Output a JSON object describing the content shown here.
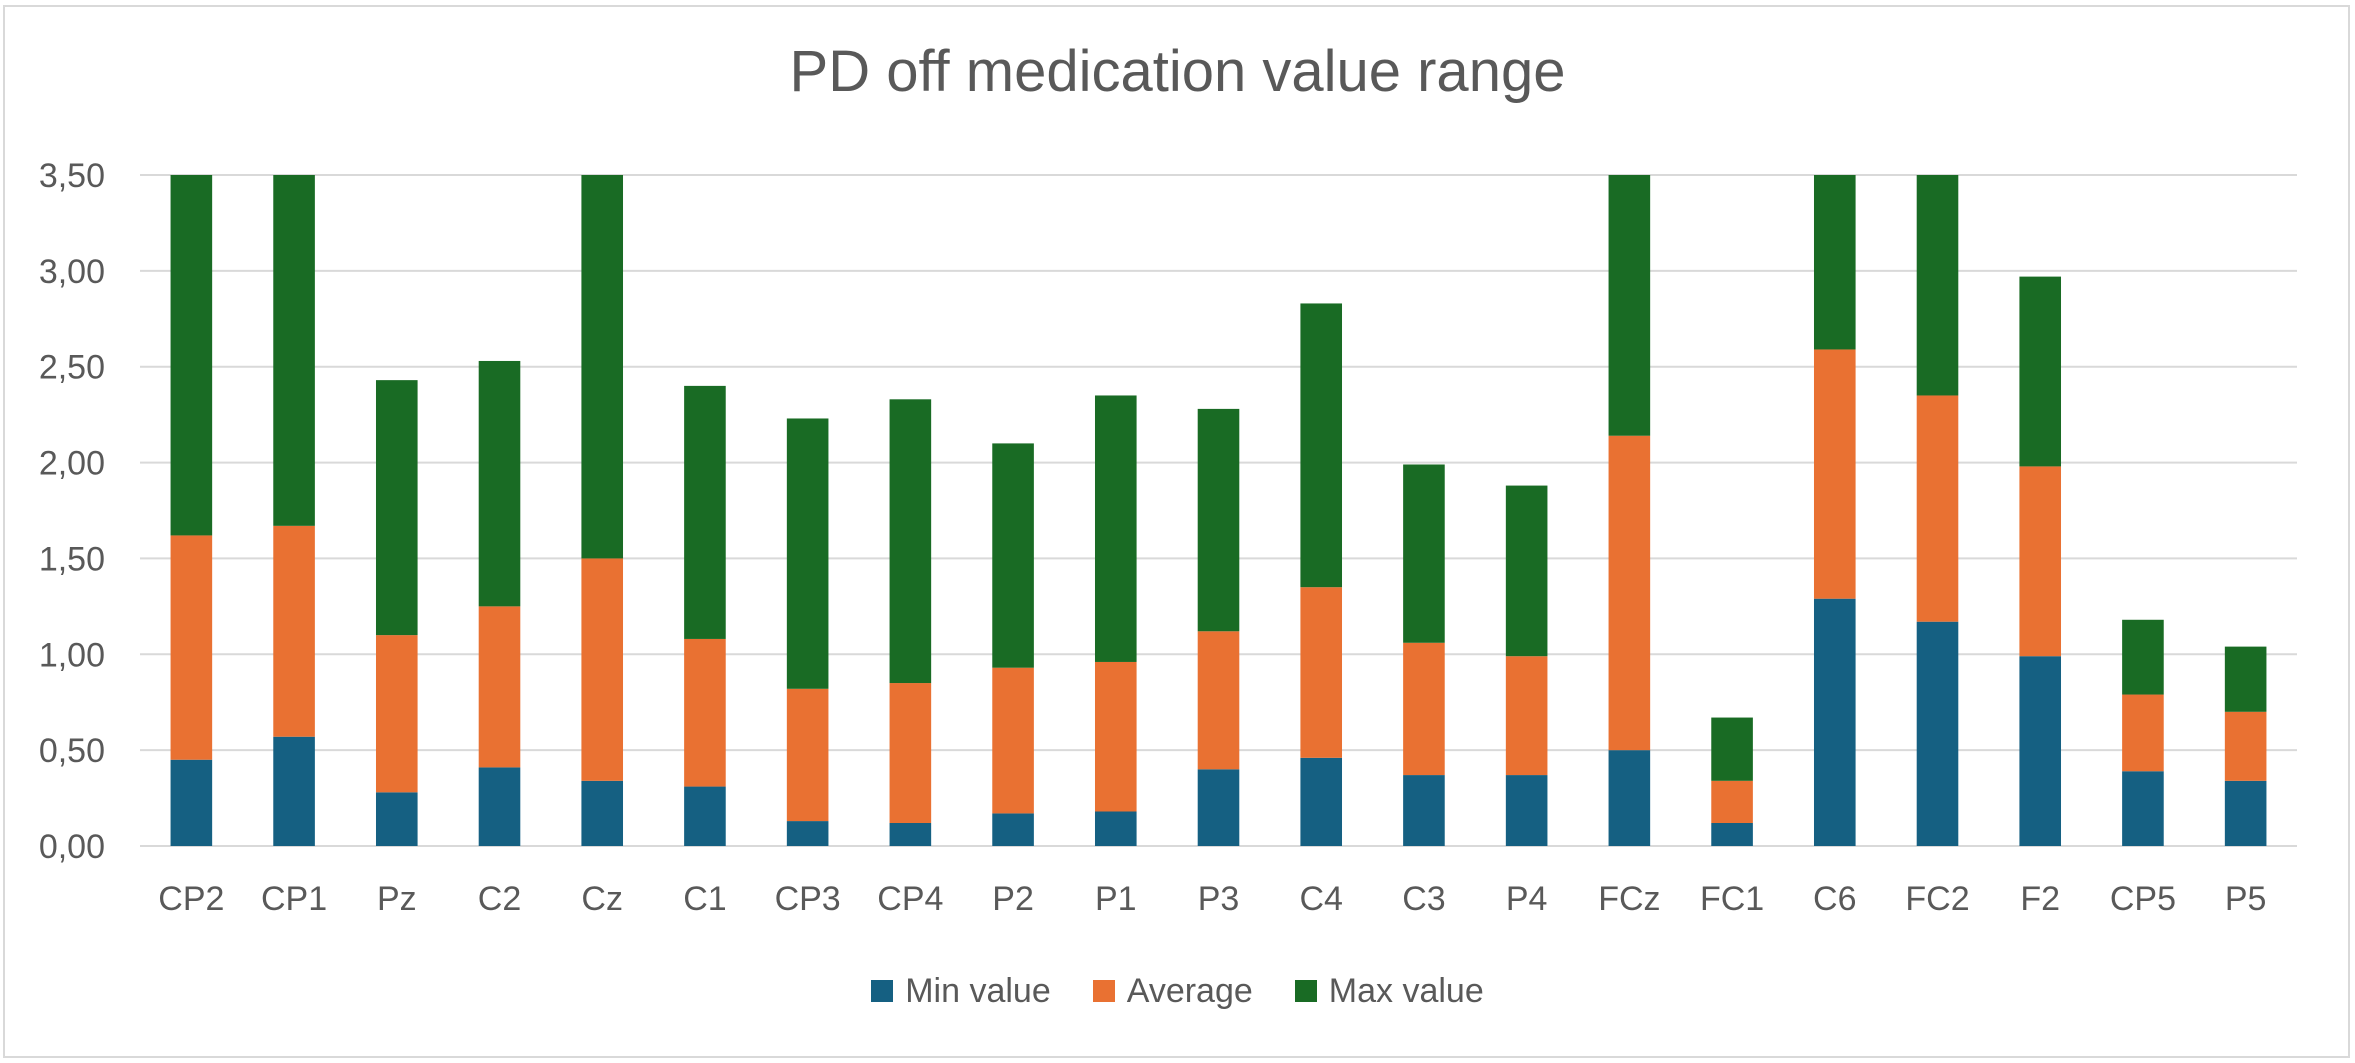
{
  "chart_data": {
    "type": "bar",
    "stacked": true,
    "title": "PD off medication value range",
    "xlabel": "",
    "ylabel": "",
    "ylim": [
      0,
      3.5
    ],
    "yticks": [
      "0,00",
      "0,50",
      "1,00",
      "1,50",
      "2,00",
      "2,50",
      "3,00",
      "3,50"
    ],
    "grid": true,
    "legend_position": "bottom",
    "categories": [
      "CP2",
      "CP1",
      "Pz",
      "C2",
      "Cz",
      "C1",
      "CP3",
      "CP4",
      "P2",
      "P1",
      "P3",
      "C4",
      "C3",
      "P4",
      "FCz",
      "FC1",
      "C6",
      "FC2",
      "F2",
      "CP5",
      "P5"
    ],
    "series": [
      {
        "name": "Min value",
        "color": "#156082",
        "values": [
          0.45,
          0.57,
          0.28,
          0.41,
          0.34,
          0.31,
          0.13,
          0.12,
          0.17,
          0.18,
          0.4,
          0.46,
          0.37,
          0.37,
          0.5,
          0.12,
          1.29,
          1.17,
          0.99,
          0.39,
          0.34
        ]
      },
      {
        "name": "Average",
        "color": "#E97132",
        "values": [
          1.17,
          1.1,
          0.82,
          0.84,
          1.16,
          0.77,
          0.69,
          0.73,
          0.76,
          0.78,
          0.72,
          0.89,
          0.69,
          0.62,
          1.64,
          0.22,
          1.3,
          1.18,
          0.99,
          0.4,
          0.36
        ]
      },
      {
        "name": "Max value",
        "color": "#196B24",
        "values": [
          1.88,
          1.83,
          1.33,
          1.28,
          2.0,
          1.32,
          1.41,
          1.48,
          1.17,
          1.39,
          1.16,
          1.48,
          0.93,
          0.89,
          1.36,
          0.33,
          0.91,
          1.15,
          0.99,
          0.39,
          0.34
        ]
      }
    ]
  }
}
